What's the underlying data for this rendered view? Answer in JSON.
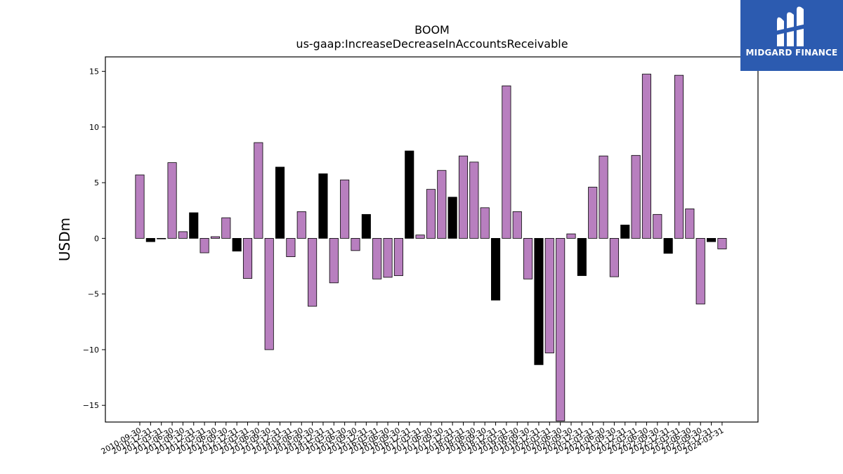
{
  "brand": {
    "name": "MIDGARD FINANCE",
    "logo_icon": "midgard-logo-icon",
    "color": "#2c5bb0"
  },
  "chart_data": {
    "type": "bar",
    "title": "BOOM",
    "subtitle": "us-gaap:IncreaseDecreaseInAccountsReceivable",
    "xlabel": "",
    "ylabel": "USDm",
    "ylim": [
      -16.5,
      16.3
    ],
    "yticks": [
      -15,
      -10,
      -5,
      0,
      5,
      10,
      15
    ],
    "grid": false,
    "colors": {
      "quarter": "#b87fbf",
      "annual": "#000000"
    },
    "categories": [
      "2010-09-30",
      "2010-12-31",
      "2011-03-31",
      "2011-06-30",
      "2011-09-30",
      "2011-12-31",
      "2012-03-31",
      "2012-06-30",
      "2012-09-30",
      "2012-12-31",
      "2013-03-31",
      "2013-06-30",
      "2013-09-30",
      "2013-12-31",
      "2014-03-31",
      "2014-06-30",
      "2014-09-30",
      "2014-12-31",
      "2015-03-31",
      "2015-06-30",
      "2015-09-30",
      "2015-12-31",
      "2016-03-31",
      "2016-06-30",
      "2016-09-30",
      "2016-12-31",
      "2017-03-31",
      "2017-06-30",
      "2017-09-30",
      "2017-12-31",
      "2018-03-31",
      "2018-06-30",
      "2018-09-30",
      "2018-12-31",
      "2019-03-31",
      "2019-06-30",
      "2019-09-30",
      "2019-12-31",
      "2020-03-31",
      "2020-06-30",
      "2020-09-30",
      "2020-12-31",
      "2021-03-31",
      "2021-06-30",
      "2021-09-30",
      "2021-12-31",
      "2022-03-31",
      "2022-06-30",
      "2022-09-30",
      "2022-12-31",
      "2023-03-31",
      "2023-06-30",
      "2023-09-30",
      "2023-12-31",
      "2024-03-31"
    ],
    "values": [
      5.7,
      -0.3,
      0.0,
      6.8,
      0.6,
      2.3,
      -1.3,
      0.15,
      1.85,
      -1.15,
      -3.6,
      8.6,
      -10.0,
      6.4,
      -1.65,
      2.4,
      -6.1,
      5.8,
      -4.0,
      5.25,
      -1.1,
      2.15,
      -3.65,
      -3.5,
      -3.35,
      7.85,
      0.3,
      4.4,
      6.1,
      3.7,
      7.4,
      6.85,
      2.75,
      -5.55,
      13.7,
      2.4,
      -3.65,
      -11.35,
      -10.3,
      -16.4,
      0.4,
      -3.35,
      4.6,
      7.4,
      -3.45,
      1.2,
      7.45,
      14.75,
      2.15,
      -1.35,
      14.65,
      2.65,
      -5.9,
      -0.3,
      -0.95
    ],
    "annual_flags": [
      false,
      true,
      false,
      false,
      false,
      true,
      false,
      false,
      false,
      true,
      false,
      false,
      false,
      true,
      false,
      false,
      false,
      true,
      false,
      false,
      false,
      true,
      false,
      false,
      false,
      true,
      false,
      false,
      false,
      true,
      false,
      false,
      false,
      true,
      false,
      false,
      false,
      true,
      false,
      false,
      false,
      true,
      false,
      false,
      false,
      true,
      false,
      false,
      false,
      true,
      false,
      false,
      false,
      true,
      false
    ]
  }
}
